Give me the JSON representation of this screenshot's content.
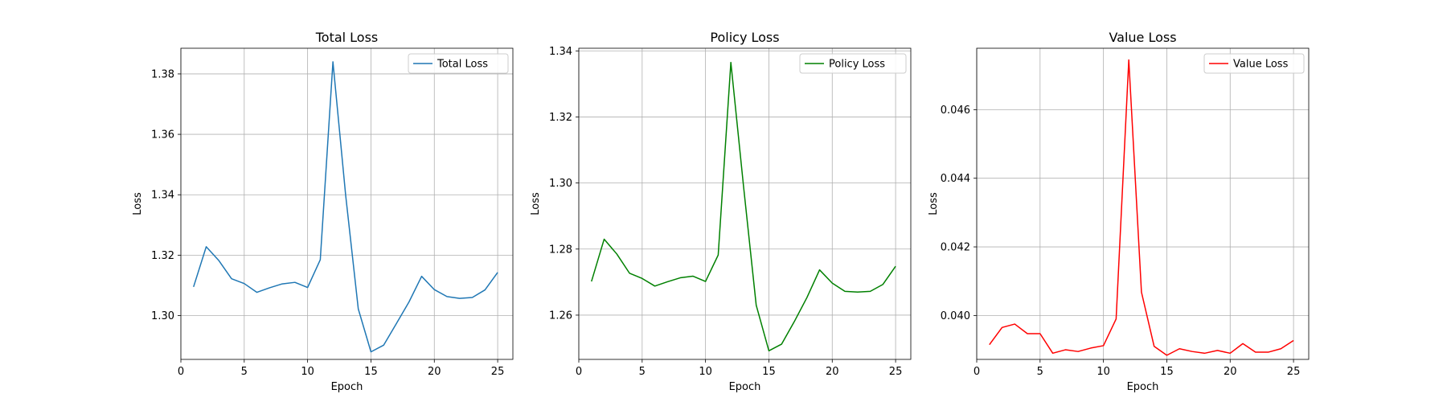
{
  "chart_data": [
    {
      "type": "line",
      "title": "Total Loss",
      "xlabel": "Epoch",
      "ylabel": "Loss",
      "xlim": [
        0,
        26.2
      ],
      "ylim": [
        1.2855,
        1.3885
      ],
      "xticks": [
        0,
        5,
        10,
        15,
        20,
        25
      ],
      "yticks": [
        1.3,
        1.32,
        1.34,
        1.36,
        1.38
      ],
      "ytick_labels": [
        "1.30",
        "1.32",
        "1.34",
        "1.36",
        "1.38"
      ],
      "grid": true,
      "legend_position": "top-right",
      "series": [
        {
          "name": "Total Loss",
          "color": "#1f77b4",
          "x": [
            1,
            2,
            3,
            4,
            5,
            6,
            7,
            8,
            9,
            10,
            11,
            12,
            13,
            14,
            15,
            16,
            17,
            18,
            19,
            20,
            21,
            22,
            23,
            24,
            25
          ],
          "y": [
            1.3095,
            1.3228,
            1.3182,
            1.3122,
            1.3106,
            1.3077,
            1.3092,
            1.3105,
            1.311,
            1.3093,
            1.3185,
            1.384,
            1.34,
            1.3022,
            1.288,
            1.2902,
            1.2973,
            1.3045,
            1.313,
            1.3086,
            1.3063,
            1.3057,
            1.306,
            1.3085,
            1.3143
          ]
        }
      ]
    },
    {
      "type": "line",
      "title": "Policy Loss",
      "xlabel": "Epoch",
      "ylabel": "Loss",
      "xlim": [
        0,
        26.2
      ],
      "ylim": [
        1.2466,
        1.3408
      ],
      "xticks": [
        0,
        5,
        10,
        15,
        20,
        25
      ],
      "yticks": [
        1.26,
        1.28,
        1.3,
        1.32,
        1.34
      ],
      "ytick_labels": [
        "1.26",
        "1.28",
        "1.30",
        "1.32",
        "1.34"
      ],
      "grid": true,
      "legend_position": "top-right",
      "series": [
        {
          "name": "Policy Loss",
          "color": "#008000",
          "x": [
            1,
            2,
            3,
            4,
            5,
            6,
            7,
            8,
            9,
            10,
            11,
            12,
            13,
            14,
            15,
            16,
            17,
            18,
            19,
            20,
            21,
            22,
            23,
            24,
            25
          ],
          "y": [
            1.2702,
            1.283,
            1.2785,
            1.2727,
            1.2711,
            1.2688,
            1.2701,
            1.2713,
            1.2718,
            1.2702,
            1.2782,
            1.3365,
            1.299,
            1.263,
            1.2492,
            1.2512,
            1.258,
            1.2653,
            1.2737,
            1.2697,
            1.2672,
            1.267,
            1.2672,
            1.2693,
            1.2748
          ]
        }
      ]
    },
    {
      "type": "line",
      "title": "Value Loss",
      "xlabel": "Epoch",
      "ylabel": "Loss",
      "xlim": [
        0,
        26.2
      ],
      "ylim": [
        0.03872,
        0.04779
      ],
      "xticks": [
        0,
        5,
        10,
        15,
        20,
        25
      ],
      "yticks": [
        0.04,
        0.042,
        0.044,
        0.046
      ],
      "ytick_labels": [
        "0.040",
        "0.042",
        "0.044",
        "0.046"
      ],
      "grid": true,
      "legend_position": "top-right",
      "series": [
        {
          "name": "Value Loss",
          "color": "#ff0000",
          "x": [
            1,
            2,
            3,
            4,
            5,
            6,
            7,
            8,
            9,
            10,
            11,
            12,
            13,
            14,
            15,
            16,
            17,
            18,
            19,
            20,
            21,
            22,
            23,
            24,
            25
          ],
          "y": [
            0.03915,
            0.03965,
            0.03975,
            0.03947,
            0.03947,
            0.0389,
            0.039,
            0.03895,
            0.03905,
            0.03912,
            0.0399,
            0.04745,
            0.04068,
            0.0391,
            0.03884,
            0.03903,
            0.03895,
            0.0389,
            0.03898,
            0.0389,
            0.03918,
            0.03893,
            0.03893,
            0.03903,
            0.03927
          ]
        }
      ]
    }
  ]
}
